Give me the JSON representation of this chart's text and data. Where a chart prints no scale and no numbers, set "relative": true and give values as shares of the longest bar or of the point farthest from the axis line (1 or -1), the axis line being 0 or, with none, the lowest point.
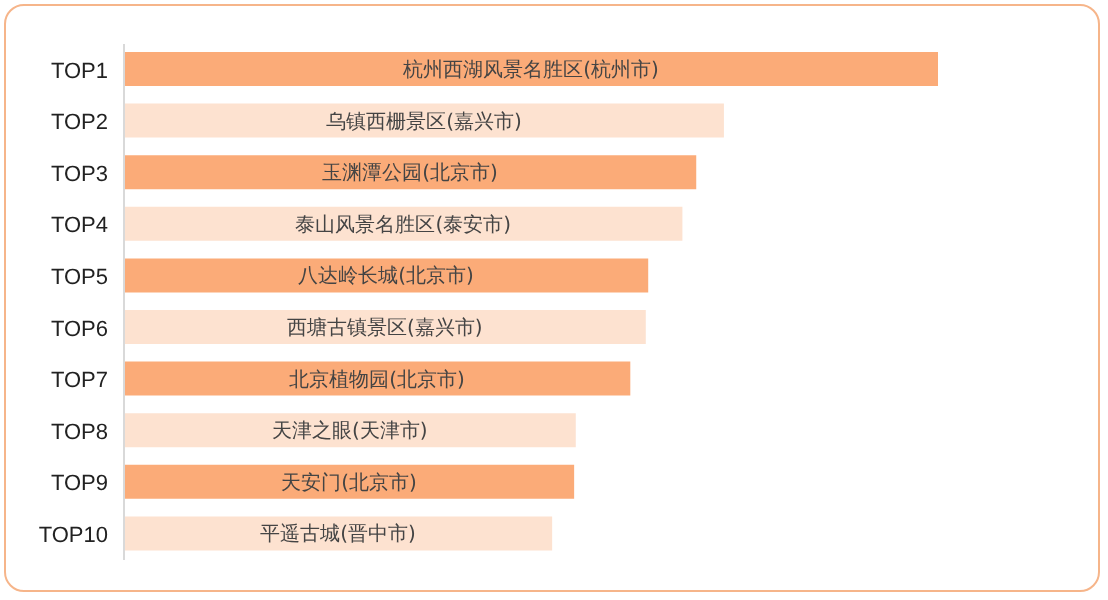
{
  "chart_data": {
    "type": "bar",
    "orientation": "horizontal",
    "relative": true,
    "categories": [
      "TOP1",
      "TOP2",
      "TOP3",
      "TOP4",
      "TOP5",
      "TOP6",
      "TOP7",
      "TOP8",
      "TOP9",
      "TOP10"
    ],
    "values": [
      1,
      0.737,
      0.703,
      0.686,
      0.644,
      0.641,
      0.622,
      0.555,
      0.553,
      0.526
    ],
    "colors": [
      "#fbab78",
      "#fde2d0",
      "#fbab78",
      "#fde2d0",
      "#fbab78",
      "#fde2d0",
      "#fbab78",
      "#fde2d0",
      "#fbab78",
      "#fde2d0"
    ],
    "annotations": [
      {
        "text": "杭州西湖风景名胜区(杭州市)",
        "y": "TOP1"
      },
      {
        "text": "乌镇西栅景区(嘉兴市)",
        "y": "TOP2"
      },
      {
        "text": "玉渊潭公园(北京市)",
        "y": "TOP3"
      },
      {
        "text": "泰山风景名胜区(泰安市)",
        "y": "TOP4"
      },
      {
        "text": "八达岭长城(北京市)",
        "y": "TOP5"
      },
      {
        "text": "西塘古镇景区(嘉兴市)",
        "y": "TOP6"
      },
      {
        "text": "北京植物园(北京市)",
        "y": "TOP7"
      },
      {
        "text": "天津之眼(天津市)",
        "y": "TOP8"
      },
      {
        "text": "天安门(北京市)",
        "y": "TOP9"
      },
      {
        "text": "平遥古城(晋中市)",
        "y": "TOP10"
      }
    ]
  }
}
